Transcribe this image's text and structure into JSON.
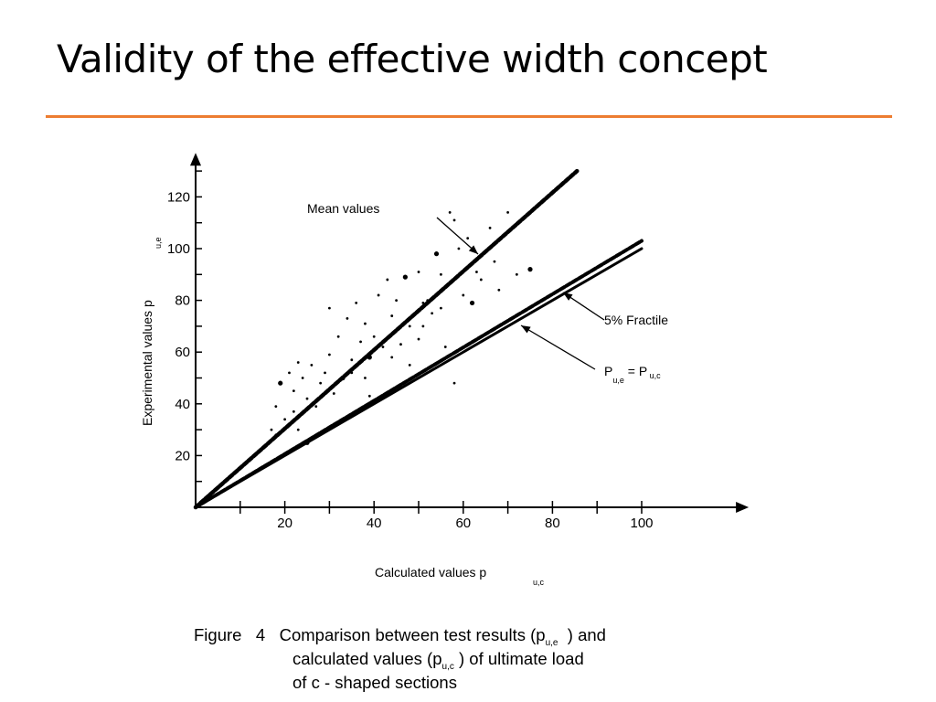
{
  "slide": {
    "title": "Validity of the effective width concept",
    "accent_color": "#ed7d31"
  },
  "chart_data": {
    "type": "scatter",
    "xlabel": "Calculated values p",
    "xlabel_sub": "u,c",
    "ylabel": "Experimental values p",
    "ylabel_sub": "u,e",
    "xlim": [
      0,
      124
    ],
    "ylim": [
      0,
      137
    ],
    "xticks": [
      20,
      40,
      60,
      80,
      100
    ],
    "yticks": [
      20,
      40,
      60,
      80,
      100,
      120
    ],
    "grid": false,
    "annotations": {
      "mean": "Mean values",
      "fractile": "5% Fractile",
      "equality_main": "P",
      "equality_sub1": "u,e",
      "equality_eq": "=",
      "equality_main2": "P",
      "equality_sub2": "u,c"
    },
    "series": [
      {
        "type": "line",
        "role": "mean",
        "points": [
          [
            0,
            0
          ],
          [
            85.5,
            130
          ]
        ]
      },
      {
        "type": "line",
        "role": "fractile",
        "points": [
          [
            0,
            0
          ],
          [
            100,
            103
          ]
        ]
      },
      {
        "type": "line",
        "role": "equality",
        "points": [
          [
            0,
            0
          ],
          [
            100,
            100
          ]
        ]
      },
      {
        "type": "scatter",
        "points": [
          [
            17,
            30
          ],
          [
            18,
            28
          ],
          [
            18,
            39
          ],
          [
            19,
            48
          ],
          [
            20,
            34
          ],
          [
            21,
            52
          ],
          [
            22,
            37
          ],
          [
            22,
            45
          ],
          [
            23,
            30
          ],
          [
            23,
            56
          ],
          [
            24,
            50
          ],
          [
            25,
            42
          ],
          [
            25,
            25
          ],
          [
            26,
            55
          ],
          [
            27,
            39
          ],
          [
            28,
            48
          ],
          [
            29,
            52
          ],
          [
            30,
            77
          ],
          [
            30,
            59
          ],
          [
            31,
            44
          ],
          [
            32,
            66
          ],
          [
            33,
            50
          ],
          [
            34,
            73
          ],
          [
            35,
            52
          ],
          [
            35,
            57
          ],
          [
            36,
            79
          ],
          [
            37,
            64
          ],
          [
            38,
            71
          ],
          [
            38,
            50
          ],
          [
            39,
            43
          ],
          [
            39,
            58
          ],
          [
            40,
            66
          ],
          [
            41,
            82
          ],
          [
            42,
            62
          ],
          [
            43,
            88
          ],
          [
            44,
            58
          ],
          [
            44,
            74
          ],
          [
            45,
            80
          ],
          [
            46,
            63
          ],
          [
            47,
            89
          ],
          [
            48,
            55
          ],
          [
            48,
            70
          ],
          [
            50,
            91
          ],
          [
            50,
            65
          ],
          [
            51,
            79
          ],
          [
            51,
            70
          ],
          [
            52,
            80
          ],
          [
            53,
            75
          ],
          [
            54,
            98
          ],
          [
            55,
            77
          ],
          [
            55,
            90
          ],
          [
            56,
            62
          ],
          [
            57,
            114
          ],
          [
            58,
            111
          ],
          [
            59,
            100
          ],
          [
            60,
            82
          ],
          [
            61,
            104
          ],
          [
            62,
            79
          ],
          [
            63,
            91
          ],
          [
            64,
            88
          ],
          [
            66,
            108
          ],
          [
            67,
            95
          ],
          [
            68,
            84
          ],
          [
            70,
            114
          ],
          [
            58,
            48
          ],
          [
            72,
            90
          ],
          [
            75,
            92
          ]
        ]
      }
    ]
  },
  "caption": {
    "line1_a": "Figure",
    "line1_b": "4",
    "line1_c": "Comparison between test results (p",
    "line1_sub": "u,e",
    "line1_d": ") and",
    "line2_a": "calculated values (p",
    "line2_sub": "u,c",
    "line2_b": ") of ultimate load",
    "line3": "of c - shaped sections"
  }
}
